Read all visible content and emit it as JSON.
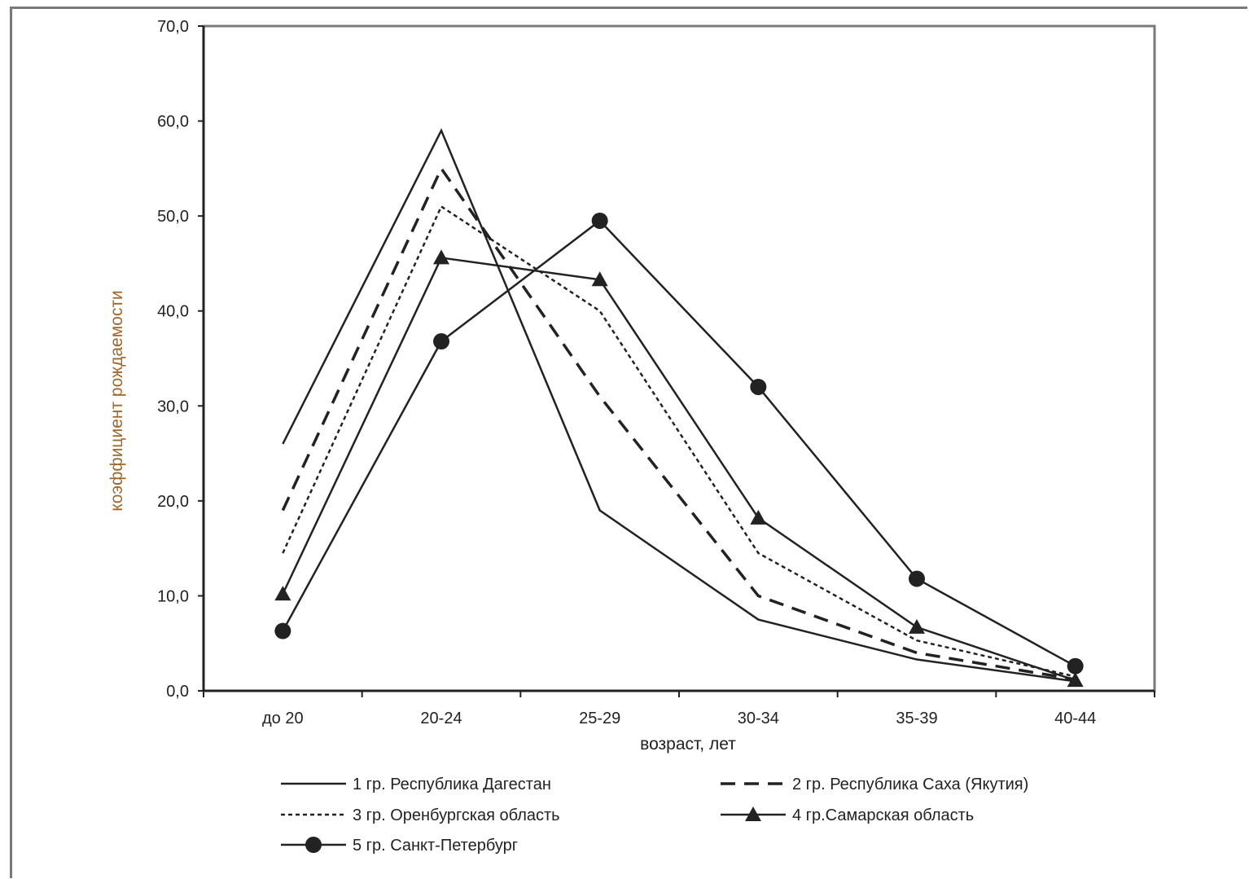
{
  "chart_data": {
    "type": "line",
    "categories": [
      "до 20",
      "20-24",
      "25-29",
      "30-34",
      "35-39",
      "40-44"
    ],
    "xlabel": "возраст, лет",
    "ylabel": "коэффициент рождаемости",
    "ylim": [
      0,
      70
    ],
    "yticks": [
      "0,0",
      "10,0",
      "20,0",
      "30,0",
      "40,0",
      "50,0",
      "60,0",
      "70,0"
    ],
    "grid": false,
    "legend_position": "bottom",
    "series": [
      {
        "name": "1 гр. Республика Дагестан",
        "values": [
          26.0,
          59.0,
          19.0,
          7.5,
          3.3,
          1.0
        ],
        "style": "solid",
        "marker": "none"
      },
      {
        "name": "2 гр. Республика Саха (Якутия)",
        "values": [
          19.0,
          55.0,
          31.0,
          10.0,
          4.0,
          1.2
        ],
        "style": "dashed",
        "marker": "none"
      },
      {
        "name": "3 гр. Оренбургская область",
        "values": [
          14.5,
          51.0,
          40.0,
          14.5,
          5.3,
          1.5
        ],
        "style": "dotted",
        "marker": "none"
      },
      {
        "name": "4 гр.Самарская область",
        "values": [
          10.2,
          45.6,
          43.3,
          18.2,
          6.7,
          1.1
        ],
        "style": "solid",
        "marker": "triangle"
      },
      {
        "name": "5 гр. Санкт-Петербург",
        "values": [
          6.3,
          36.8,
          49.5,
          32.0,
          11.8,
          2.6
        ],
        "style": "solid",
        "marker": "circle"
      }
    ],
    "colors": {
      "line": "#222222",
      "y_title": "#a0662a"
    }
  }
}
